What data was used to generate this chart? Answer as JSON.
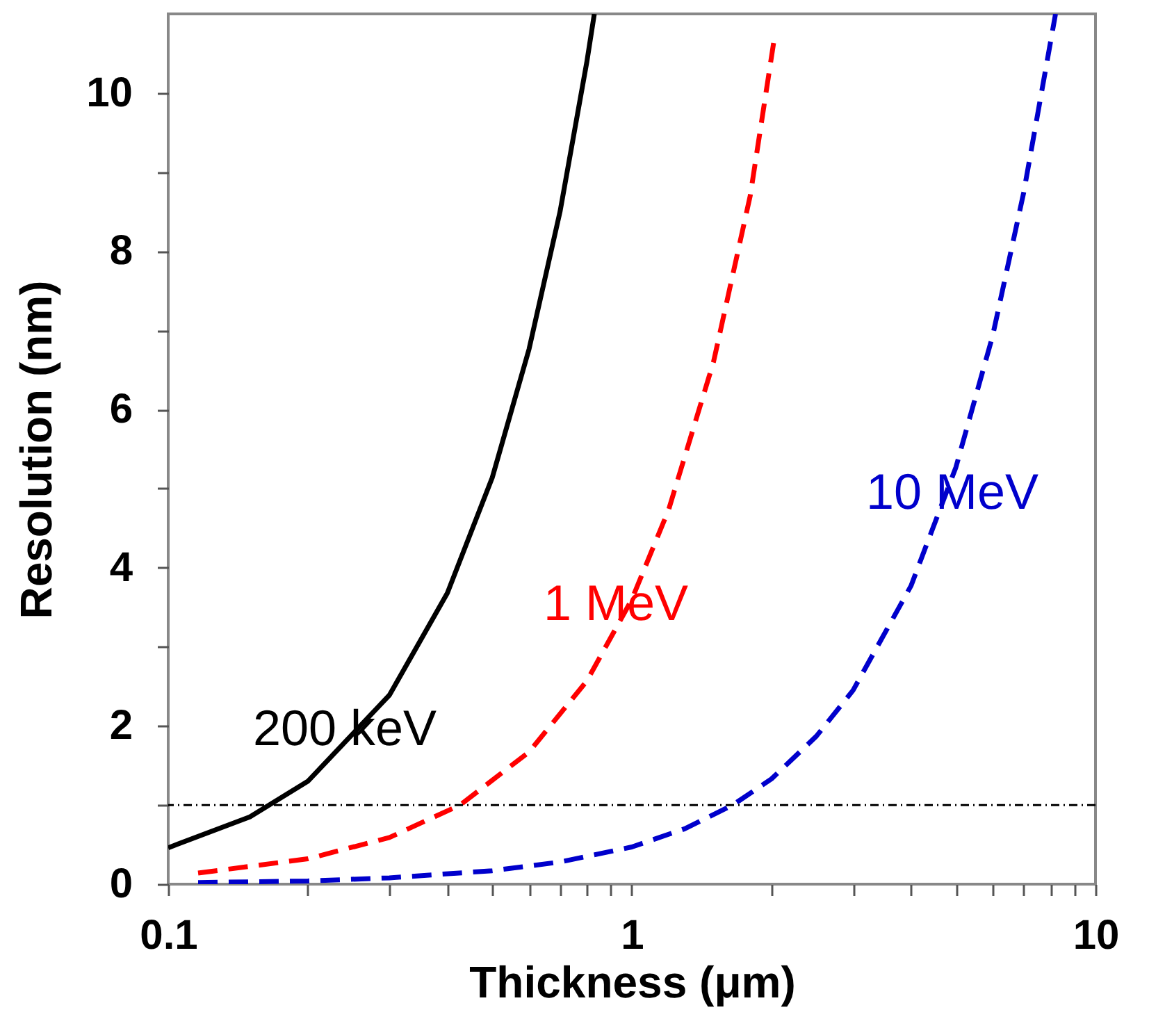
{
  "chart_data": {
    "type": "line",
    "xlabel": "Thickness (μm)",
    "ylabel": "Resolution (nm)",
    "log": "x",
    "xlim": [
      0.1,
      10
    ],
    "ylim": [
      0,
      11
    ],
    "xticks": [
      0.1,
      {
        "value": 0.2,
        "label": null
      },
      {
        "value": 0.3,
        "label": null
      },
      {
        "value": 0.4,
        "label": null
      },
      {
        "value": 0.5,
        "label": null
      },
      {
        "value": 0.6,
        "label": null
      },
      {
        "value": 0.7,
        "label": null
      },
      {
        "value": 0.8,
        "label": null
      },
      {
        "value": 0.9,
        "label": null
      },
      1,
      {
        "value": 2,
        "label": null
      },
      {
        "value": 3,
        "label": null
      },
      {
        "value": 4,
        "label": null
      },
      {
        "value": 5,
        "label": null
      },
      {
        "value": 6,
        "label": null
      },
      {
        "value": 7,
        "label": null
      },
      {
        "value": 8,
        "label": null
      },
      {
        "value": 9,
        "label": null
      },
      10
    ],
    "yticks": [
      0,
      {
        "value": 1,
        "label": null
      },
      2,
      {
        "value": 3,
        "label": null
      },
      4,
      {
        "value": 5,
        "label": null
      },
      6,
      {
        "value": 7,
        "label": null
      },
      8,
      {
        "value": 9,
        "label": null
      },
      10
    ],
    "grid": false,
    "legend": false,
    "marker": "none",
    "ref_lines": [
      {
        "axis": "y",
        "value": 1,
        "color": "#000000",
        "line_style": "dotted"
      }
    ],
    "series": [
      {
        "name": "200 keV",
        "color": "#000000",
        "line_style": "solid",
        "x": [
          0.1,
          0.15,
          0.2,
          0.3,
          0.4,
          0.5,
          0.6,
          0.7,
          0.8,
          0.83
        ],
        "values": [
          0.46,
          0.85,
          1.3,
          2.39,
          3.68,
          5.14,
          6.76,
          8.5,
          10.4,
          11
        ]
      },
      {
        "name": "1 MeV",
        "color": "#ff0000",
        "line_style": "dashed",
        "x": [
          0.116,
          0.2,
          0.3,
          0.426,
          0.6,
          0.8,
          1,
          1.2,
          1.5,
          1.8,
          2.03
        ],
        "values": [
          0.14,
          0.32,
          0.59,
          1,
          1.67,
          2.57,
          3.6,
          4.73,
          6.6,
          8.7,
          10.7
        ]
      },
      {
        "name": "10 MeV",
        "color": "#0000cc",
        "line_style": "dashed",
        "x": [
          0.116,
          0.2,
          0.3,
          0.5,
          0.7,
          1,
          1.3,
          1.65,
          2,
          2.5,
          3,
          4,
          5,
          6,
          7,
          8.2
        ],
        "values": [
          0.02,
          0.04,
          0.08,
          0.17,
          0.28,
          0.47,
          0.7,
          1,
          1.33,
          1.87,
          2.45,
          3.77,
          5.27,
          6.93,
          8.74,
          11
        ]
      }
    ]
  }
}
